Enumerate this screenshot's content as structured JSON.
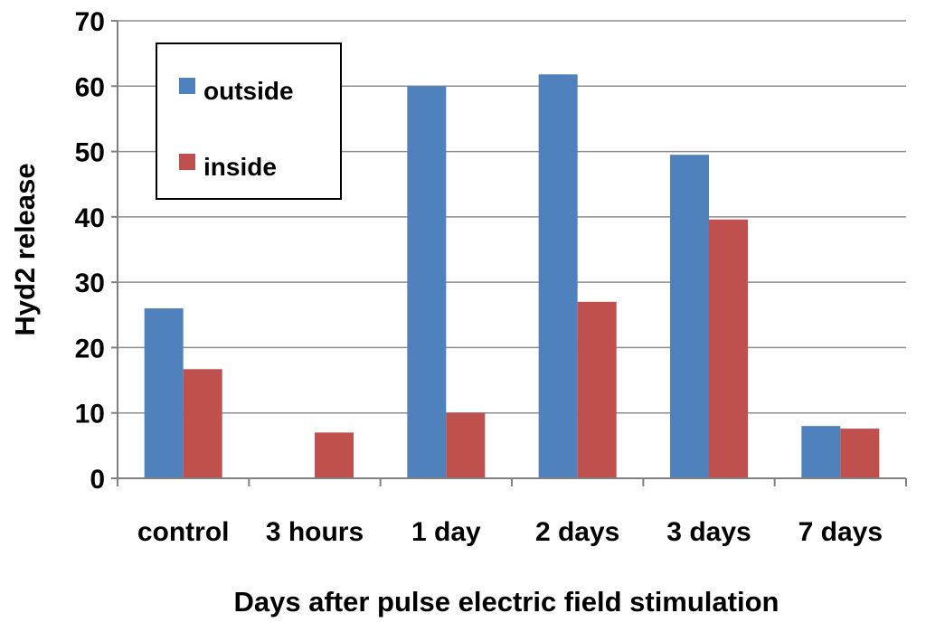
{
  "chart_data": {
    "type": "bar",
    "categories": [
      "control",
      "3 hours",
      "1 day",
      "2 days",
      "3 days",
      "7 days"
    ],
    "series": [
      {
        "name": "outside",
        "color": "#4F81BD",
        "values": [
          26,
          null,
          60,
          61.8,
          49.5,
          8
        ]
      },
      {
        "name": "inside",
        "color": "#C0504D",
        "values": [
          16.7,
          7,
          10,
          27,
          39.6,
          7.6
        ]
      }
    ],
    "title": "",
    "xlabel": "Days after pulse electric field stimulation",
    "ylabel": "Hyd2 release",
    "ylim": [
      0,
      70
    ],
    "yticks": [
      0,
      10,
      20,
      30,
      40,
      50,
      60,
      70
    ],
    "grid": true,
    "legend_position": "top-left"
  }
}
